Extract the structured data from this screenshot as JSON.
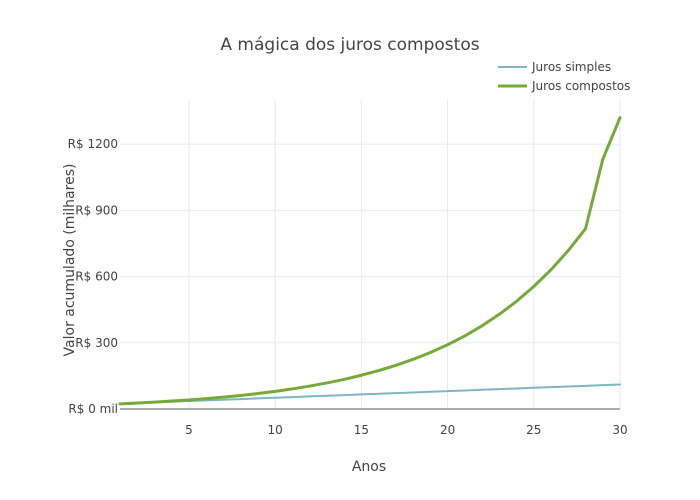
{
  "chart_data": {
    "type": "line",
    "title": "A mágica dos juros compostos",
    "xlabel": "Anos",
    "ylabel": "Valor acumulado (milhares)",
    "xlim": [
      1,
      30
    ],
    "ylim": [
      0,
      1400
    ],
    "x_ticks": [
      5,
      10,
      15,
      20,
      25,
      30
    ],
    "y_ticks": [
      {
        "value": 0,
        "label": "R$ 0 mil"
      },
      {
        "value": 300,
        "label": "R$ 300"
      },
      {
        "value": 600,
        "label": "R$ 600"
      },
      {
        "value": 900,
        "label": "R$ 900"
      },
      {
        "value": 1200,
        "label": "R$ 1200"
      }
    ],
    "grid": true,
    "legend_position": "top-right",
    "x": [
      1,
      2,
      3,
      4,
      5,
      6,
      7,
      8,
      9,
      10,
      11,
      12,
      13,
      14,
      15,
      16,
      17,
      18,
      19,
      20,
      21,
      22,
      23,
      24,
      25,
      26,
      27,
      28,
      29,
      30
    ],
    "series": [
      {
        "name": "Juros simples",
        "color": "#7fb6c0",
        "values": [
          24,
          27,
          30,
          33,
          36,
          39,
          42,
          45,
          48,
          51,
          54,
          57,
          60,
          63,
          66,
          69,
          72,
          75,
          78,
          81,
          84,
          87,
          90,
          93,
          96,
          99,
          102,
          105,
          108,
          111
        ]
      },
      {
        "name": "Juros compostos",
        "color": "#77a93a",
        "values": [
          23,
          27,
          31,
          36,
          41,
          47,
          54,
          61,
          70,
          80,
          91,
          104,
          118,
          134,
          153,
          174,
          198,
          225,
          256,
          291,
          331,
          377,
          429,
          488,
          555,
          631,
          718,
          817,
          1131,
          1320
        ]
      }
    ]
  }
}
